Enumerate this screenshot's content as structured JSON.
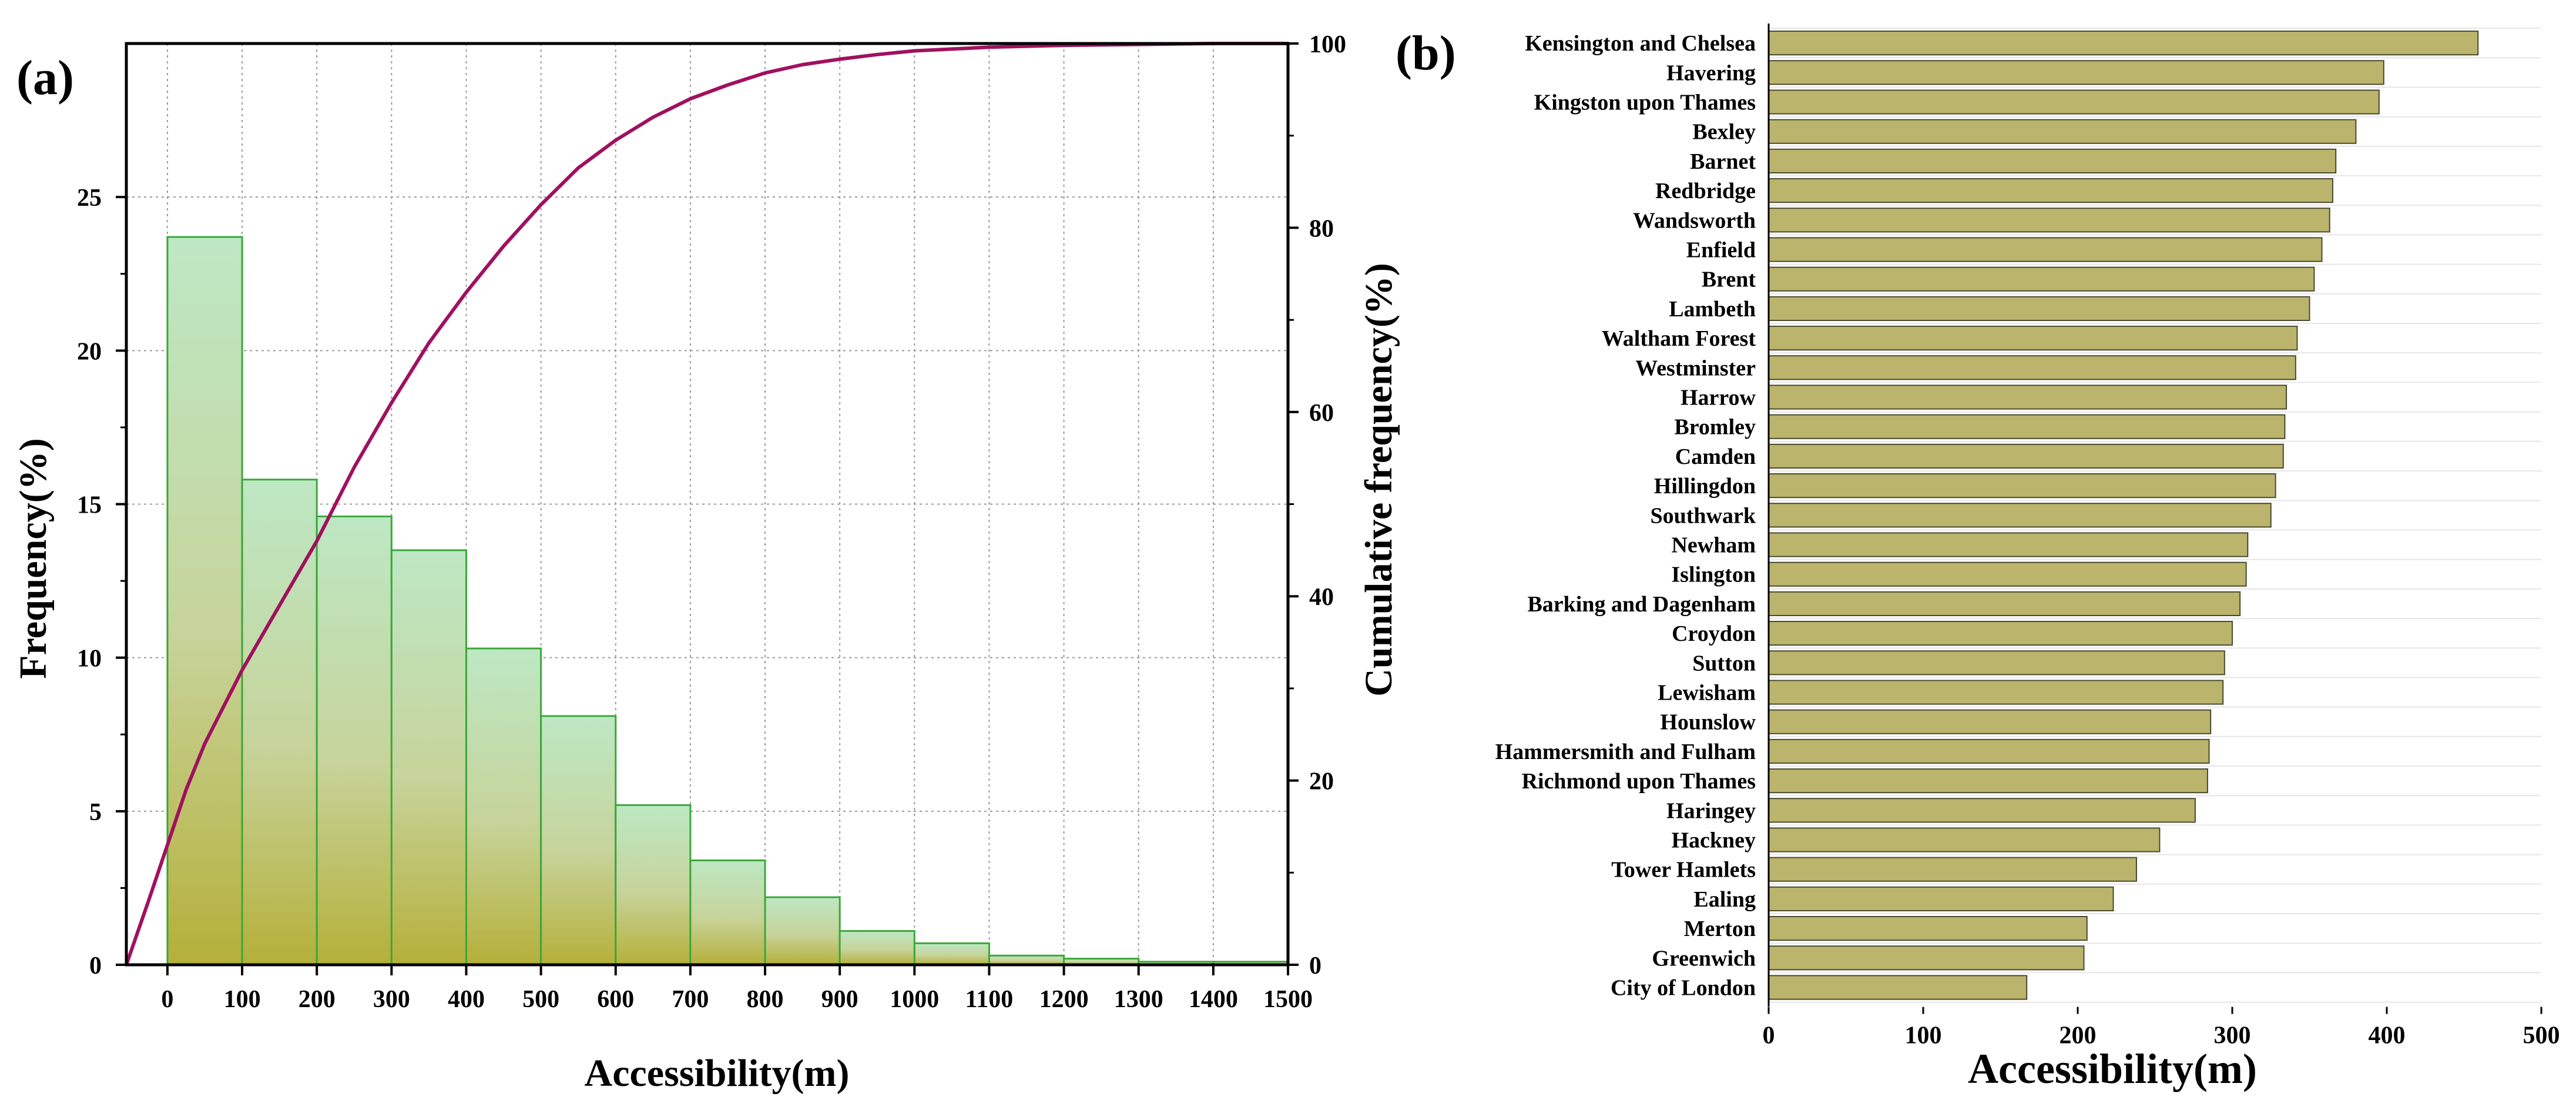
{
  "chart_data": [
    {
      "panel": "(a)",
      "type": "histogram",
      "xlabel": "Accessibility(m)",
      "ylabel": "Frequency(%)",
      "y2label": "Cumulative frequency(%)",
      "xlim": [
        -55,
        1500
      ],
      "ylim": [
        0,
        30
      ],
      "y2lim": [
        0,
        100
      ],
      "x_ticks": [
        0,
        100,
        200,
        300,
        400,
        500,
        600,
        700,
        800,
        900,
        1000,
        1100,
        1200,
        1300,
        1400,
        1500
      ],
      "y_ticks": [
        0,
        5,
        10,
        15,
        20,
        25
      ],
      "y2_ticks": [
        0,
        20,
        40,
        60,
        80,
        100
      ],
      "bins": [
        {
          "start": 0,
          "end": 100,
          "value": 23.7
        },
        {
          "start": 100,
          "end": 200,
          "value": 15.8
        },
        {
          "start": 200,
          "end": 300,
          "value": 14.6
        },
        {
          "start": 300,
          "end": 400,
          "value": 13.5
        },
        {
          "start": 400,
          "end": 500,
          "value": 10.3
        },
        {
          "start": 500,
          "end": 600,
          "value": 8.1
        },
        {
          "start": 600,
          "end": 700,
          "value": 5.2
        },
        {
          "start": 700,
          "end": 800,
          "value": 3.4
        },
        {
          "start": 800,
          "end": 900,
          "value": 2.2
        },
        {
          "start": 900,
          "end": 1000,
          "value": 1.1
        },
        {
          "start": 1000,
          "end": 1100,
          "value": 0.7
        },
        {
          "start": 1100,
          "end": 1200,
          "value": 0.3
        },
        {
          "start": 1200,
          "end": 1300,
          "value": 0.2
        },
        {
          "start": 1300,
          "end": 1400,
          "value": 0.1
        },
        {
          "start": 1400,
          "end": 1500,
          "value": 0.1
        }
      ],
      "cumulative_curve": {
        "name": "Cumulative frequency",
        "x": [
          -55,
          -25,
          0,
          25,
          50,
          100,
          150,
          200,
          250,
          300,
          350,
          400,
          450,
          500,
          550,
          600,
          650,
          700,
          750,
          800,
          850,
          900,
          950,
          1000,
          1050,
          1100,
          1200,
          1300,
          1400,
          1500
        ],
        "y": [
          0,
          7,
          13,
          19,
          24,
          32,
          39,
          46,
          54,
          61,
          67.5,
          73,
          78,
          82.5,
          86.5,
          89.5,
          92,
          94,
          95.5,
          96.8,
          97.7,
          98.3,
          98.8,
          99.2,
          99.4,
          99.6,
          99.8,
          99.9,
          100,
          100
        ]
      },
      "colors": {
        "bar_fill_top": "#bde8c4",
        "bar_fill_bottom": "#b5b03a",
        "bar_stroke": "#3aa83a",
        "curve": "#a0115f",
        "grid": "#9a9a9a"
      }
    },
    {
      "panel": "(b)",
      "type": "bar",
      "orientation": "horizontal",
      "xlabel": "Accessibility(m)",
      "xlim": [
        0,
        500
      ],
      "x_ticks": [
        0,
        100,
        200,
        300,
        400,
        500
      ],
      "categories": [
        "Kensington and Chelsea",
        "Havering",
        "Kingston upon Thames",
        "Bexley",
        "Barnet",
        "Redbridge",
        "Wandsworth",
        "Enfield",
        "Brent",
        "Lambeth",
        "Waltham Forest",
        "Westminster",
        "Harrow",
        "Bromley",
        "Camden",
        "Hillingdon",
        "Southwark",
        "Newham",
        "Islington",
        "Barking and Dagenham",
        "Croydon",
        "Sutton",
        "Lewisham",
        "Hounslow",
        "Hammersmith and Fulham",
        "Richmond upon Thames",
        "Haringey",
        "Hackney",
        "Tower Hamlets",
        "Ealing",
        "Merton",
        "Greenwich",
        "City of London"
      ],
      "values": [
        459,
        398,
        395,
        380,
        367,
        365,
        363,
        358,
        353,
        350,
        342,
        341,
        335,
        334,
        333,
        328,
        325,
        310,
        309,
        305,
        300,
        295,
        294,
        286,
        285,
        284,
        276,
        253,
        238,
        223,
        206,
        204,
        167
      ],
      "colors": {
        "bar_fill": "#bab46c",
        "bar_stroke": "#4a4a30"
      }
    }
  ]
}
